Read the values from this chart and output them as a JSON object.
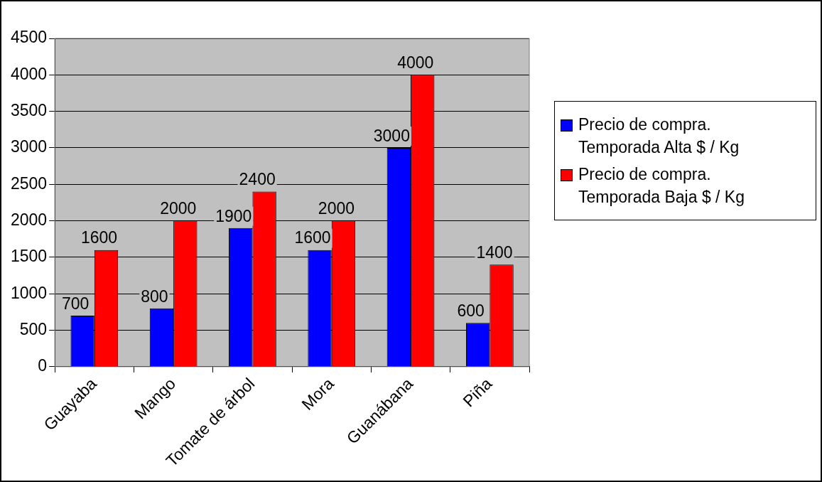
{
  "chart_data": {
    "type": "bar",
    "categories": [
      "Guayaba",
      "Mango",
      "Tomate de árbol",
      "Mora",
      "Guanábana",
      "Piña"
    ],
    "series": [
      {
        "name": "Precio de compra. Temporada Alta $ / Kg",
        "color": "#0000ff",
        "values": [
          700,
          800,
          1900,
          1600,
          3000,
          600
        ]
      },
      {
        "name": "Precio de compra. Temporada Baja $ / Kg",
        "color": "#ff0000",
        "values": [
          1600,
          2000,
          2400,
          2000,
          4000,
          1400
        ]
      }
    ],
    "ylim": [
      0,
      4500
    ],
    "yticks": [
      0,
      500,
      1000,
      1500,
      2000,
      2500,
      3000,
      3500,
      4000,
      4500
    ],
    "grid": "y",
    "legend": "right",
    "data_labels": true
  }
}
